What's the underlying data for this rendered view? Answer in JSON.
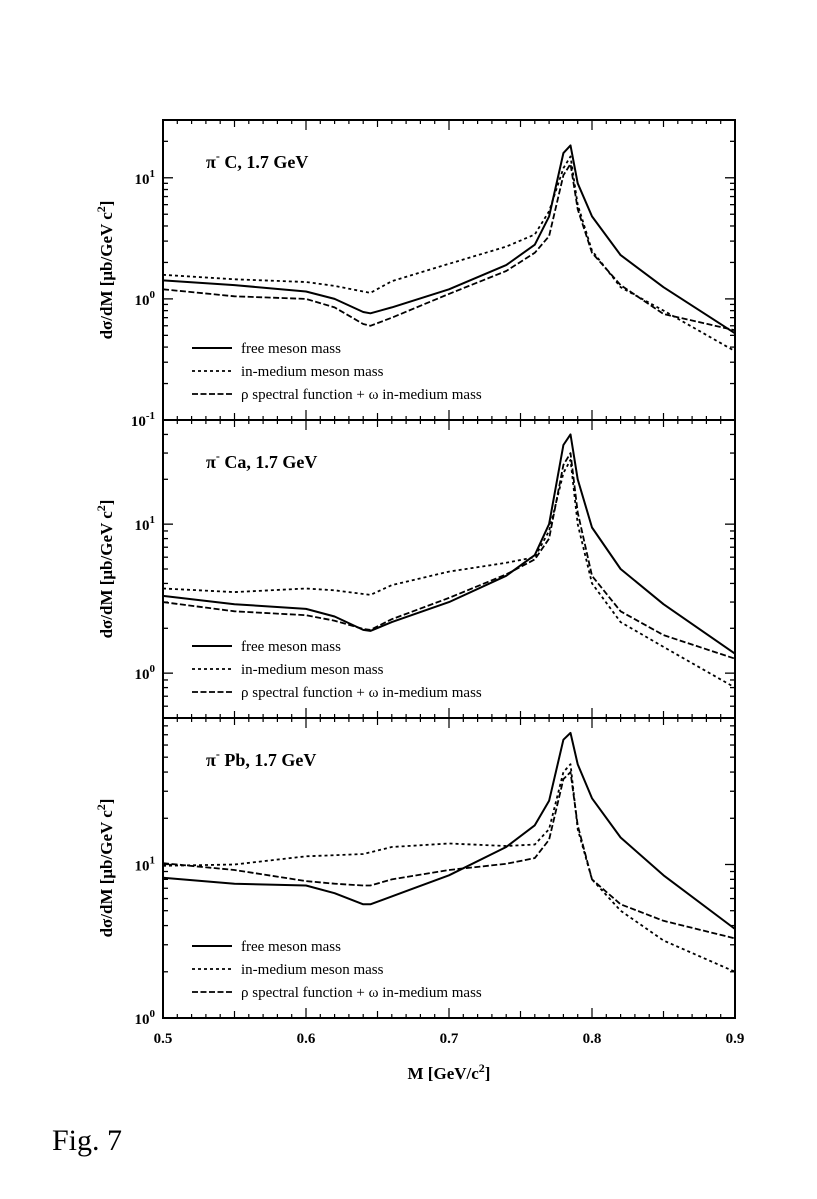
{
  "caption": "Fig. 7",
  "chart_data": {
    "type": "line",
    "x_label_parts": [
      "M [GeV/c",
      "2",
      "]"
    ],
    "y_label_parts": [
      "dσ/dM [μb/GeV c",
      "2",
      "]"
    ],
    "x_ticks": [
      "0.5",
      "0.6",
      "0.7",
      "0.8",
      "0.9"
    ],
    "xlim": [
      0.5,
      0.9
    ],
    "yscale": "log",
    "legend": [
      "free meson mass",
      "in-medium meson mass",
      "ρ spectral function + ω in-medium mass"
    ],
    "panels": [
      {
        "title_main": "π",
        "title_sup": "-",
        "title_rest": " C,  1.7 GeV",
        "ylim": [
          0.1,
          30
        ],
        "y_ticks": [
          {
            "base": "10",
            "exp": "-1",
            "value": 0.1
          },
          {
            "base": "10",
            "exp": "0",
            "value": 1
          },
          {
            "base": "10",
            "exp": "1",
            "value": 10
          }
        ],
        "series": [
          {
            "name": "free meson mass",
            "style": "solid",
            "x": [
              0.5,
              0.55,
              0.6,
              0.62,
              0.64,
              0.645,
              0.66,
              0.7,
              0.74,
              0.76,
              0.77,
              0.78,
              0.785,
              0.79,
              0.8,
              0.82,
              0.85,
              0.9
            ],
            "y": [
              1.42,
              1.3,
              1.15,
              1.0,
              0.78,
              0.76,
              0.85,
              1.2,
              1.9,
              2.8,
              4.8,
              16,
              18.5,
              9,
              4.8,
              2.3,
              1.25,
              0.52
            ]
          },
          {
            "name": "in-medium meson mass",
            "style": "dotted",
            "x": [
              0.5,
              0.55,
              0.6,
              0.62,
              0.64,
              0.645,
              0.66,
              0.7,
              0.74,
              0.76,
              0.77,
              0.78,
              0.785,
              0.79,
              0.8,
              0.82,
              0.85,
              0.9
            ],
            "y": [
              1.58,
              1.45,
              1.38,
              1.28,
              1.15,
              1.12,
              1.4,
              1.95,
              2.7,
              3.4,
              5.3,
              12,
              15,
              6,
              2.5,
              1.25,
              0.8,
              0.37
            ]
          },
          {
            "name": "ρ spectral function + ω in-medium mass",
            "style": "dashed",
            "x": [
              0.5,
              0.55,
              0.6,
              0.62,
              0.64,
              0.645,
              0.66,
              0.7,
              0.74,
              0.76,
              0.77,
              0.78,
              0.785,
              0.79,
              0.8,
              0.82,
              0.85,
              0.9
            ],
            "y": [
              1.2,
              1.05,
              1.0,
              0.85,
              0.62,
              0.6,
              0.7,
              1.1,
              1.7,
              2.4,
              3.3,
              10.5,
              13,
              5.5,
              2.4,
              1.3,
              0.75,
              0.55
            ]
          }
        ]
      },
      {
        "title_main": "π",
        "title_sup": "-",
        "title_rest": " Ca,  1.7 GeV",
        "ylim": [
          0.5,
          50
        ],
        "y_ticks": [
          {
            "base": "10",
            "exp": "0",
            "value": 1
          },
          {
            "base": "10",
            "exp": "1",
            "value": 10
          }
        ],
        "series": [
          {
            "name": "free meson mass",
            "style": "solid",
            "x": [
              0.5,
              0.55,
              0.6,
              0.62,
              0.64,
              0.645,
              0.66,
              0.7,
              0.74,
              0.76,
              0.77,
              0.78,
              0.785,
              0.79,
              0.8,
              0.82,
              0.85,
              0.9
            ],
            "y": [
              3.3,
              2.9,
              2.7,
              2.4,
              1.95,
              1.92,
              2.2,
              3.0,
              4.5,
              6.2,
              10,
              34,
              40,
              20,
              9.5,
              5.0,
              2.9,
              1.35
            ]
          },
          {
            "name": "in-medium meson mass",
            "style": "dotted",
            "x": [
              0.5,
              0.55,
              0.6,
              0.62,
              0.64,
              0.645,
              0.66,
              0.7,
              0.74,
              0.76,
              0.77,
              0.78,
              0.785,
              0.79,
              0.8,
              0.82,
              0.85,
              0.9
            ],
            "y": [
              3.7,
              3.5,
              3.7,
              3.6,
              3.4,
              3.35,
              3.9,
              4.8,
              5.5,
              6.0,
              9,
              22,
              27,
              10,
              4.0,
              2.2,
              1.5,
              0.8
            ]
          },
          {
            "name": "ρ spectral function + ω in-medium mass",
            "style": "dashed",
            "x": [
              0.5,
              0.55,
              0.6,
              0.62,
              0.64,
              0.645,
              0.66,
              0.7,
              0.74,
              0.76,
              0.77,
              0.78,
              0.785,
              0.79,
              0.8,
              0.82,
              0.85,
              0.9
            ],
            "y": [
              3.0,
              2.6,
              2.45,
              2.25,
              1.98,
              1.95,
              2.3,
              3.2,
              4.6,
              5.8,
              8,
              25,
              30,
              12,
              4.5,
              2.6,
              1.8,
              1.25
            ]
          }
        ]
      },
      {
        "title_main": "π",
        "title_sup": "-",
        "title_rest": " Pb,  1.7 GeV",
        "ylim": [
          1,
          90
        ],
        "y_ticks": [
          {
            "base": "10",
            "exp": "0",
            "value": 1
          },
          {
            "base": "10",
            "exp": "1",
            "value": 10
          }
        ],
        "series": [
          {
            "name": "free meson mass",
            "style": "solid",
            "x": [
              0.5,
              0.55,
              0.6,
              0.62,
              0.64,
              0.645,
              0.66,
              0.7,
              0.74,
              0.76,
              0.77,
              0.78,
              0.785,
              0.79,
              0.8,
              0.82,
              0.85,
              0.9
            ],
            "y": [
              8.2,
              7.5,
              7.3,
              6.5,
              5.5,
              5.5,
              6.2,
              8.5,
              13,
              18,
              26,
              65,
              72,
              45,
              27,
              15,
              8.5,
              3.8
            ]
          },
          {
            "name": "in-medium meson mass",
            "style": "dotted",
            "x": [
              0.5,
              0.55,
              0.6,
              0.62,
              0.64,
              0.645,
              0.66,
              0.7,
              0.74,
              0.76,
              0.77,
              0.78,
              0.785,
              0.79,
              0.8,
              0.82,
              0.85,
              0.9
            ],
            "y": [
              9.8,
              10,
              11.3,
              11.5,
              11.7,
              12,
              13,
              13.7,
              13.2,
              13.5,
              17,
              40,
              45,
              17,
              8,
              5,
              3.2,
              2.0
            ]
          },
          {
            "name": "ρ spectral function + ω in-medium mass",
            "style": "dashed",
            "x": [
              0.5,
              0.55,
              0.6,
              0.62,
              0.64,
              0.645,
              0.66,
              0.7,
              0.74,
              0.76,
              0.77,
              0.78,
              0.785,
              0.79,
              0.8,
              0.82,
              0.85,
              0.9
            ],
            "y": [
              10.2,
              9.2,
              7.8,
              7.5,
              7.3,
              7.3,
              8.0,
              9.2,
              10.1,
              11,
              14.5,
              36,
              40,
              18,
              8,
              5.5,
              4.3,
              3.3
            ]
          }
        ]
      }
    ]
  }
}
